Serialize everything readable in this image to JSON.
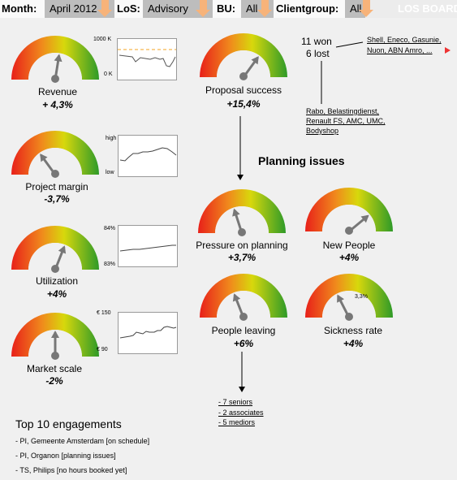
{
  "filters": {
    "month_label": "Month:",
    "month_value": "April 2012",
    "los_label": "LoS:",
    "los_value": "Advisory",
    "bu_label": "BU:",
    "bu_value": "All",
    "clientgroup_label": "Clientgroup:",
    "clientgroup_value": "All",
    "brand": "LOS BOARD"
  },
  "kpis": {
    "revenue": {
      "label": "Revenue",
      "value": "+ 4,3%",
      "needle": 0.55
    },
    "project_margin": {
      "label": "Project margin",
      "value": "-3,7%",
      "needle": 0.3
    },
    "utilization": {
      "label": "Utilization",
      "value": "+4%",
      "needle": 0.62
    },
    "market_scale": {
      "label": "Market scale",
      "value": "-2%",
      "needle": 0.5
    },
    "proposal_success": {
      "label": "Proposal success",
      "value": "+15,4%",
      "needle": 0.7
    },
    "pressure_on_planning": {
      "label": "Pressure on planning",
      "value": "+3,7%",
      "needle": 0.4
    },
    "new_people": {
      "label": "New People",
      "value": "+4%",
      "needle": 0.78
    },
    "people_leaving": {
      "label": "People leaving",
      "value": "+6%",
      "needle": 0.38
    },
    "sickness_rate": {
      "label": "Sickness rate",
      "value": "+4%",
      "needle": 0.35,
      "inner_label": "3,3%"
    }
  },
  "sparks": {
    "revenue": {
      "top": "1000  K",
      "bottom": "0 K"
    },
    "project_margin": {
      "top": "high",
      "bottom": "low"
    },
    "utilization": {
      "top": "84%",
      "bottom": "83%"
    },
    "market_scale": {
      "top": "€ 150",
      "bottom": "€ 90"
    }
  },
  "proposals": {
    "won": "11 won",
    "lost": "6 lost",
    "won_clients": "Shell, Eneco, Gasunie, Nuon, ABN Amro, ...",
    "lost_clients": "Rabo, Belastingdienst, Renault FS, AMC, UMC, Bodyshop"
  },
  "planning_issues": {
    "title": "Planning issues"
  },
  "leavers": [
    "- 7 seniors",
    "- 2 associates",
    "- 5 mediors"
  ],
  "engagements": {
    "title": "Top 10 engagements",
    "items": [
      "- PI, Gemeente Amsterdam [on schedule]",
      "- PI, Organon [planning issues]",
      "- TS, Philips [no hours booked yet]"
    ]
  },
  "colors": {
    "red": "#e8201a",
    "orange": "#f08a1c",
    "yellow": "#d8d80c",
    "green": "#2e9a28",
    "needle": "#777777",
    "accent": "#f7b37a",
    "dash": "#f5a623"
  }
}
